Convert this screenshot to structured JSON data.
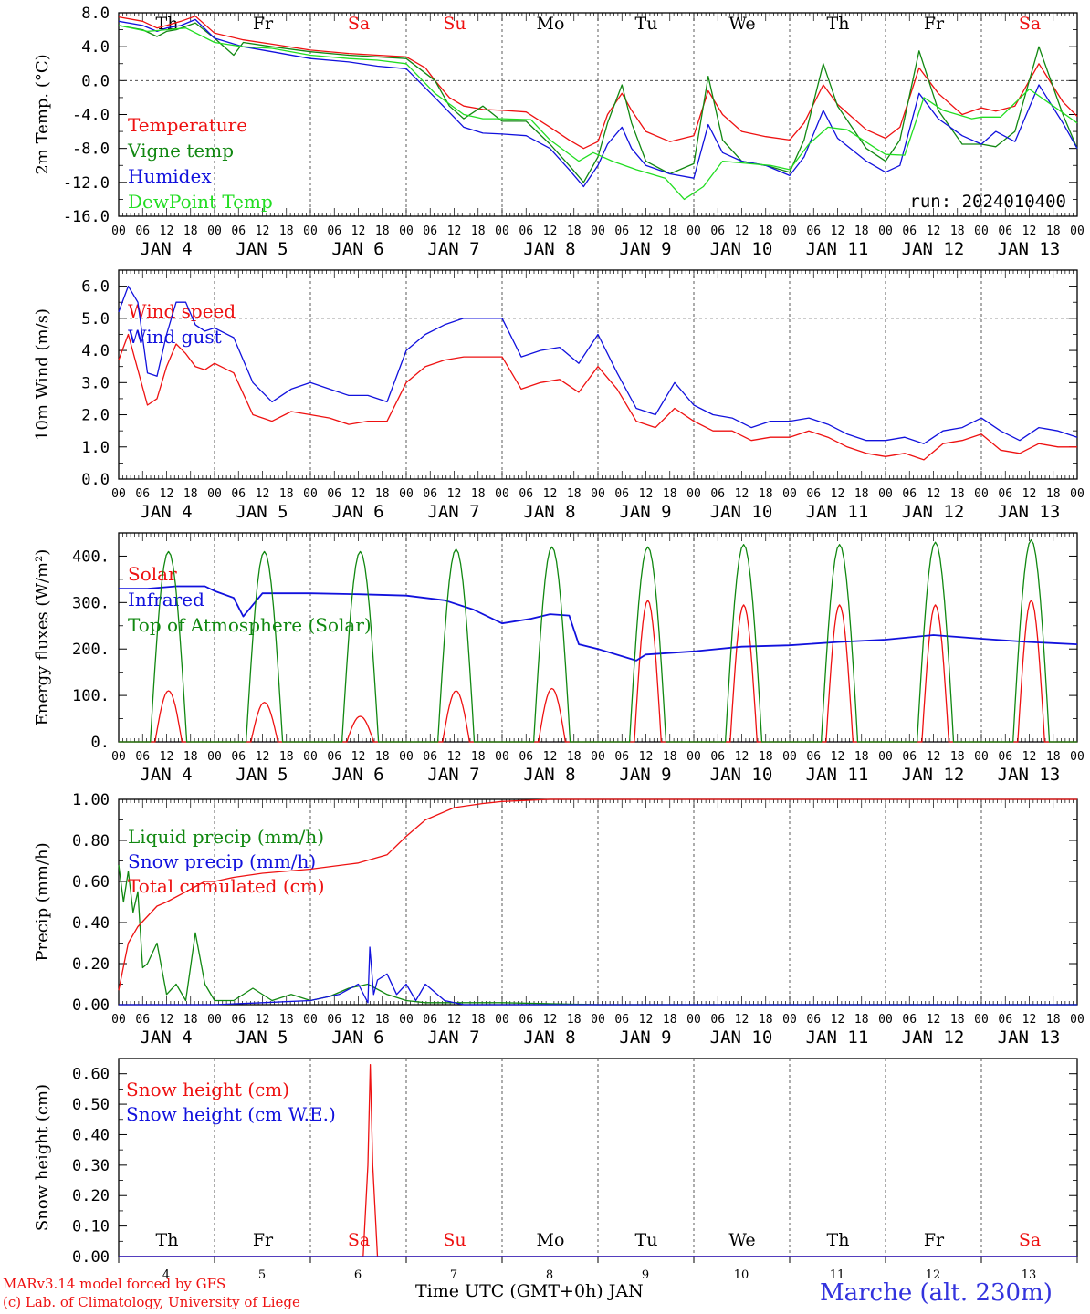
{
  "footer": {
    "model_line": "MARv3.14 model forced by GFS",
    "lab_line": "(c) Lab. of Climatology, University of Liege",
    "station": "Marche (alt. 230m)",
    "xlabel": "Time UTC (GMT+0h) JAN"
  },
  "colors": {
    "red": "#ee1111",
    "green": "#118811",
    "blue": "#1111dd",
    "lightgreen": "#22dd22",
    "sunday": "#ee1111"
  },
  "days": {
    "weekday_labels": [
      "Th",
      "Fr",
      "Sa",
      "Su",
      "Mo",
      "Tu",
      "We",
      "Th",
      "Fr",
      "Sa"
    ],
    "date_labels": [
      "JAN  4",
      "JAN  5",
      "JAN  6",
      "JAN  7",
      "JAN  8",
      "JAN  9",
      "JAN 10",
      "JAN 11",
      "JAN 12",
      "JAN 13"
    ],
    "day_numbers": [
      "4",
      "5",
      "6",
      "7",
      "8",
      "9",
      "10",
      "11",
      "12",
      "13"
    ],
    "hour_labels": [
      "00",
      "06",
      "12",
      "18"
    ],
    "end_hour_label": "00",
    "weekend_indices": [
      2,
      3,
      9
    ]
  },
  "chart_data": [
    {
      "type": "line",
      "ylabel": "2m Temp. (°C)",
      "ylim": [
        -16,
        8
      ],
      "yticks": [
        "8.0",
        "4.0",
        "0.0",
        "-4.0",
        "-8.0",
        "-12.0",
        "-16.0"
      ],
      "annotation": "run: 2024010400",
      "x_unit": "days since JAN 4 00 UTC",
      "series": [
        {
          "name": "Temperature",
          "color": "red",
          "x": [
            0,
            0.25,
            0.4,
            0.5,
            0.65,
            0.8,
            1.0,
            1.3,
            1.6,
            2.0,
            2.4,
            2.7,
            3.0,
            3.2,
            3.3,
            3.45,
            3.6,
            3.8,
            4.0,
            4.25,
            4.5,
            4.7,
            4.85,
            5.0,
            5.1,
            5.25,
            5.35,
            5.5,
            5.75,
            6.0,
            6.15,
            6.3,
            6.5,
            6.75,
            7.0,
            7.15,
            7.35,
            7.5,
            7.8,
            8.0,
            8.15,
            8.35,
            8.55,
            8.8,
            9.0,
            9.15,
            9.35,
            9.6,
            9.85,
            10.0
          ],
          "y": [
            7.5,
            7.0,
            6.2,
            6.5,
            7.0,
            7.6,
            5.6,
            4.8,
            4.3,
            3.6,
            3.2,
            3.0,
            2.8,
            1.5,
            0.0,
            -2.0,
            -3.0,
            -3.4,
            -3.5,
            -3.7,
            -5.5,
            -7.0,
            -8.0,
            -7.2,
            -4.0,
            -1.5,
            -3.5,
            -6.0,
            -7.2,
            -6.5,
            -1.2,
            -4.0,
            -6.0,
            -6.6,
            -7.0,
            -5.0,
            -0.5,
            -2.8,
            -5.8,
            -6.8,
            -5.5,
            1.5,
            -1.5,
            -4.0,
            -3.2,
            -3.6,
            -3.0,
            2.0,
            -2.5,
            -4.2
          ]
        },
        {
          "name": "Vigne temp",
          "color": "green",
          "x": [
            0,
            0.25,
            0.4,
            0.5,
            0.6,
            0.8,
            1.0,
            1.2,
            1.3,
            1.6,
            2.0,
            2.4,
            2.7,
            3.0,
            3.3,
            3.45,
            3.6,
            3.8,
            4.0,
            4.25,
            4.5,
            4.7,
            4.85,
            5.0,
            5.1,
            5.25,
            5.35,
            5.5,
            5.75,
            6.0,
            6.15,
            6.3,
            6.5,
            6.75,
            7.0,
            7.15,
            7.35,
            7.5,
            7.8,
            8.0,
            8.15,
            8.35,
            8.55,
            8.8,
            9.0,
            9.15,
            9.35,
            9.6,
            9.85,
            10.0
          ],
          "y": [
            6.5,
            6.0,
            5.2,
            5.8,
            6.0,
            6.8,
            5.0,
            3.0,
            4.5,
            4.0,
            3.4,
            3.0,
            2.8,
            2.6,
            0.0,
            -3.0,
            -4.5,
            -3.0,
            -4.8,
            -4.8,
            -7.5,
            -10.0,
            -12.0,
            -9.0,
            -5.0,
            -0.5,
            -5.0,
            -9.5,
            -11.0,
            -9.8,
            0.5,
            -7.0,
            -9.5,
            -10.0,
            -10.8,
            -7.0,
            2.0,
            -3.0,
            -8.0,
            -9.5,
            -7.0,
            3.5,
            -3.5,
            -7.5,
            -7.5,
            -7.8,
            -6.0,
            4.0,
            -4.0,
            -8.0
          ]
        },
        {
          "name": "Humidex",
          "color": "blue",
          "x": [
            0,
            0.25,
            0.4,
            0.5,
            0.65,
            0.8,
            1.0,
            1.3,
            1.6,
            2.0,
            2.4,
            2.7,
            3.0,
            3.3,
            3.6,
            3.8,
            4.0,
            4.25,
            4.5,
            4.7,
            4.85,
            5.0,
            5.1,
            5.25,
            5.35,
            5.5,
            5.75,
            6.0,
            6.15,
            6.3,
            6.5,
            6.75,
            7.0,
            7.15,
            7.35,
            7.5,
            7.8,
            8.0,
            8.15,
            8.35,
            8.55,
            8.8,
            9.0,
            9.15,
            9.35,
            9.6,
            9.85,
            10.0
          ],
          "y": [
            7.0,
            6.5,
            5.8,
            6.2,
            6.5,
            7.2,
            5.0,
            4.0,
            3.4,
            2.6,
            2.2,
            1.7,
            1.4,
            -2.0,
            -5.5,
            -6.2,
            -6.3,
            -6.5,
            -8.0,
            -10.5,
            -12.5,
            -10.0,
            -7.5,
            -5.5,
            -8.0,
            -10.0,
            -11.0,
            -11.5,
            -5.2,
            -8.5,
            -9.5,
            -10.0,
            -11.2,
            -9.0,
            -3.5,
            -6.8,
            -9.5,
            -10.8,
            -10.0,
            -1.5,
            -4.5,
            -6.5,
            -7.5,
            -6.0,
            -7.2,
            -0.5,
            -5.0,
            -8.0
          ]
        },
        {
          "name": "DewPoint Temp",
          "color": "lightgreen",
          "x": [
            0,
            0.3,
            0.5,
            0.7,
            1.0,
            1.3,
            1.6,
            2.0,
            2.4,
            2.7,
            3.0,
            3.3,
            3.6,
            3.8,
            4.0,
            4.3,
            4.5,
            4.8,
            4.95,
            5.15,
            5.4,
            5.7,
            5.9,
            6.1,
            6.3,
            6.5,
            6.8,
            7.0,
            7.2,
            7.4,
            7.6,
            7.9,
            8.0,
            8.2,
            8.4,
            8.6,
            8.9,
            9.0,
            9.2,
            9.5,
            9.75,
            10.0
          ],
          "y": [
            6.5,
            5.8,
            6.0,
            6.2,
            4.5,
            4.0,
            3.8,
            3.0,
            2.6,
            2.4,
            2.0,
            -1.5,
            -4.0,
            -4.5,
            -4.5,
            -4.6,
            -7.0,
            -9.5,
            -8.5,
            -9.5,
            -10.5,
            -11.5,
            -14.0,
            -12.5,
            -9.5,
            -9.7,
            -10.0,
            -10.5,
            -7.5,
            -5.5,
            -5.8,
            -8.0,
            -8.7,
            -8.8,
            -2.0,
            -3.5,
            -4.5,
            -4.3,
            -4.3,
            -1.0,
            -3.0,
            -5.0
          ]
        }
      ]
    },
    {
      "type": "line",
      "ylabel": "10m Wind (m/s)",
      "ylim": [
        0,
        6.5
      ],
      "yticks": [
        "0.0",
        "1.0",
        "2.0",
        "3.0",
        "4.0",
        "5.0",
        "6.0"
      ],
      "ref_line": 5.0,
      "x_unit": "days since JAN 4 00 UTC",
      "series": [
        {
          "name": "Wind speed",
          "color": "red",
          "x": [
            0,
            0.1,
            0.2,
            0.3,
            0.4,
            0.5,
            0.6,
            0.7,
            0.8,
            0.9,
            1.0,
            1.2,
            1.4,
            1.6,
            1.8,
            2.0,
            2.2,
            2.4,
            2.6,
            2.8,
            3.0,
            3.2,
            3.4,
            3.6,
            3.8,
            4.0,
            4.2,
            4.4,
            4.6,
            4.8,
            5.0,
            5.2,
            5.4,
            5.6,
            5.8,
            6.0,
            6.2,
            6.4,
            6.6,
            6.8,
            7.0,
            7.2,
            7.4,
            7.6,
            7.8,
            8.0,
            8.2,
            8.4,
            8.6,
            8.8,
            9.0,
            9.2,
            9.4,
            9.6,
            9.8,
            10.0
          ],
          "y": [
            3.7,
            4.5,
            3.4,
            2.3,
            2.5,
            3.5,
            4.2,
            3.9,
            3.5,
            3.4,
            3.6,
            3.3,
            2.0,
            1.8,
            2.1,
            2.0,
            1.9,
            1.7,
            1.8,
            1.8,
            3.0,
            3.5,
            3.7,
            3.8,
            3.8,
            3.8,
            2.8,
            3.0,
            3.1,
            2.7,
            3.5,
            2.8,
            1.8,
            1.6,
            2.2,
            1.8,
            1.5,
            1.5,
            1.2,
            1.3,
            1.3,
            1.5,
            1.3,
            1.0,
            0.8,
            0.7,
            0.8,
            0.6,
            1.1,
            1.2,
            1.4,
            0.9,
            0.8,
            1.1,
            1.0,
            1.0
          ]
        },
        {
          "name": "Wind gust",
          "color": "blue",
          "x": [
            0,
            0.1,
            0.2,
            0.3,
            0.4,
            0.5,
            0.6,
            0.7,
            0.8,
            0.9,
            1.0,
            1.2,
            1.4,
            1.6,
            1.8,
            2.0,
            2.2,
            2.4,
            2.6,
            2.8,
            3.0,
            3.2,
            3.4,
            3.6,
            3.8,
            4.0,
            4.2,
            4.4,
            4.6,
            4.8,
            5.0,
            5.2,
            5.4,
            5.6,
            5.8,
            6.0,
            6.2,
            6.4,
            6.6,
            6.8,
            7.0,
            7.2,
            7.4,
            7.6,
            7.8,
            8.0,
            8.2,
            8.4,
            8.6,
            8.8,
            9.0,
            9.2,
            9.4,
            9.6,
            9.8,
            10.0
          ],
          "y": [
            5.2,
            6.0,
            5.5,
            3.3,
            3.2,
            4.5,
            5.5,
            5.5,
            4.8,
            4.6,
            4.7,
            4.4,
            3.0,
            2.4,
            2.8,
            3.0,
            2.8,
            2.6,
            2.6,
            2.4,
            4.0,
            4.5,
            4.8,
            5.0,
            5.0,
            5.0,
            3.8,
            4.0,
            4.1,
            3.6,
            4.5,
            3.3,
            2.2,
            2.0,
            3.0,
            2.3,
            2.0,
            1.9,
            1.6,
            1.8,
            1.8,
            1.9,
            1.7,
            1.4,
            1.2,
            1.2,
            1.3,
            1.1,
            1.5,
            1.6,
            1.9,
            1.5,
            1.2,
            1.6,
            1.5,
            1.3
          ]
        }
      ]
    },
    {
      "type": "line",
      "ylabel": "Energy fluxes (W/m²)",
      "ylim": [
        0,
        450
      ],
      "yticks": [
        "0.",
        "100.",
        "200.",
        "300.",
        "400."
      ],
      "x_unit": "days since JAN 4 00 UTC",
      "daily_peaks": {
        "solar": [
          110,
          85,
          55,
          110,
          115,
          305,
          295,
          295,
          295,
          305
        ],
        "toa_solar": [
          410,
          410,
          410,
          415,
          420,
          420,
          425,
          425,
          430,
          435
        ]
      },
      "series": [
        {
          "name": "Solar",
          "color": "red"
        },
        {
          "name": "Infrared",
          "color": "blue",
          "x": [
            0,
            0.3,
            0.6,
            0.9,
            1.0,
            1.2,
            1.3,
            1.5,
            2.0,
            2.5,
            3.0,
            3.4,
            3.7,
            4.0,
            4.3,
            4.5,
            4.7,
            4.8,
            5.0,
            5.4,
            5.5,
            6.0,
            6.5,
            7.0,
            7.5,
            8.0,
            8.5,
            9.0,
            9.5,
            10.0
          ],
          "y": [
            330,
            330,
            335,
            335,
            325,
            310,
            270,
            320,
            320,
            318,
            315,
            305,
            285,
            255,
            265,
            275,
            272,
            210,
            200,
            175,
            188,
            195,
            205,
            208,
            215,
            220,
            230,
            222,
            215,
            210
          ]
        },
        {
          "name": "Top of Atmosphere (Solar)",
          "color": "green"
        }
      ]
    },
    {
      "type": "line",
      "ylabel": "Precip (mm/h)",
      "ylim": [
        0,
        1
      ],
      "yticks": [
        "0.00",
        "0.20",
        "0.40",
        "0.60",
        "0.80",
        "1.00"
      ],
      "x_unit": "days since JAN 4 00 UTC",
      "series": [
        {
          "name": "Liquid precip (mm/h)",
          "color": "green",
          "x": [
            0,
            0.05,
            0.1,
            0.15,
            0.2,
            0.25,
            0.3,
            0.4,
            0.5,
            0.6,
            0.7,
            0.8,
            0.9,
            1.0,
            1.2,
            1.4,
            1.6,
            1.8,
            2.0,
            2.2,
            2.4,
            2.6,
            2.8,
            3.0,
            3.2,
            3.5,
            4.0,
            5.0,
            10.0
          ],
          "y": [
            0.68,
            0.5,
            0.65,
            0.45,
            0.55,
            0.18,
            0.2,
            0.3,
            0.05,
            0.1,
            0.02,
            0.35,
            0.1,
            0.02,
            0.02,
            0.08,
            0.02,
            0.05,
            0.02,
            0.04,
            0.08,
            0.1,
            0.05,
            0.02,
            0.01,
            0.01,
            0.01,
            0.0,
            0.0
          ]
        },
        {
          "name": "Snow precip (mm/h)",
          "color": "blue",
          "x": [
            0,
            1.0,
            1.5,
            2.0,
            2.3,
            2.5,
            2.6,
            2.62,
            2.66,
            2.7,
            2.8,
            2.9,
            3.0,
            3.1,
            3.2,
            3.4,
            3.6,
            10.0
          ],
          "y": [
            0.0,
            0.0,
            0.01,
            0.02,
            0.05,
            0.1,
            0.01,
            0.28,
            0.05,
            0.12,
            0.15,
            0.05,
            0.1,
            0.02,
            0.1,
            0.02,
            0.0,
            0.0
          ]
        },
        {
          "name": "Total cumulated (cm)",
          "color": "red",
          "x": [
            0,
            0.1,
            0.2,
            0.4,
            0.5,
            0.7,
            0.9,
            1.0,
            1.2,
            1.5,
            2.0,
            2.5,
            2.8,
            3.0,
            3.2,
            3.5,
            3.8,
            4.0,
            4.5,
            10.0
          ],
          "y": [
            0.07,
            0.3,
            0.38,
            0.48,
            0.5,
            0.55,
            0.6,
            0.6,
            0.62,
            0.64,
            0.66,
            0.69,
            0.73,
            0.82,
            0.9,
            0.96,
            0.98,
            0.99,
            1.0,
            1.0
          ]
        }
      ]
    },
    {
      "type": "line",
      "ylabel": "Snow height (cm)",
      "ylim": [
        0,
        0.65
      ],
      "yticks": [
        "0.00",
        "0.10",
        "0.20",
        "0.30",
        "0.40",
        "0.50",
        "0.60"
      ],
      "x_unit": "days since JAN 4 00 UTC",
      "series": [
        {
          "name": "Snow height (cm)",
          "color": "red",
          "x": [
            0,
            2.55,
            2.6,
            2.625,
            2.65,
            2.7,
            10.0
          ],
          "y": [
            0,
            0,
            0.3,
            0.63,
            0.3,
            0,
            0
          ]
        },
        {
          "name": "Snow height (cm W.E.)",
          "color": "blue",
          "x": [
            0,
            10.0
          ],
          "y": [
            0,
            0
          ]
        }
      ]
    }
  ]
}
